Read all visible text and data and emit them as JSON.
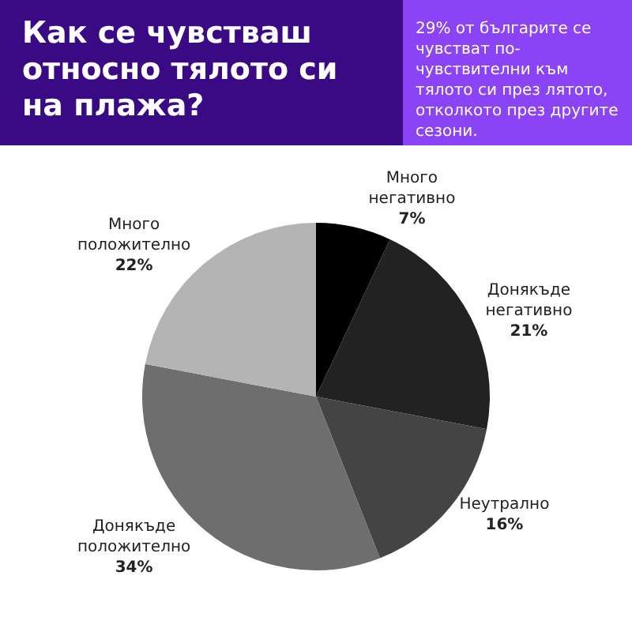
{
  "chart_data": {
    "type": "pie",
    "title": "Как се чувстваш относно тялото си на плажа?",
    "subtitle": "29% от българите се чувстват по-чувствителни към тялото си през лятото, отколкото през другите сезони.",
    "categories": [
      "Много негативно",
      "Донякъде негативно",
      "Неутрално",
      "Донякъде положително",
      "Много положително"
    ],
    "values": [
      7,
      21,
      16,
      34,
      22
    ],
    "value_labels": [
      "7%",
      "21%",
      "16%",
      "34%",
      "22%"
    ],
    "colors": [
      "#000000",
      "#222222",
      "#444444",
      "#6e6e6e",
      "#b4b4b4"
    ],
    "legend": false
  }
}
